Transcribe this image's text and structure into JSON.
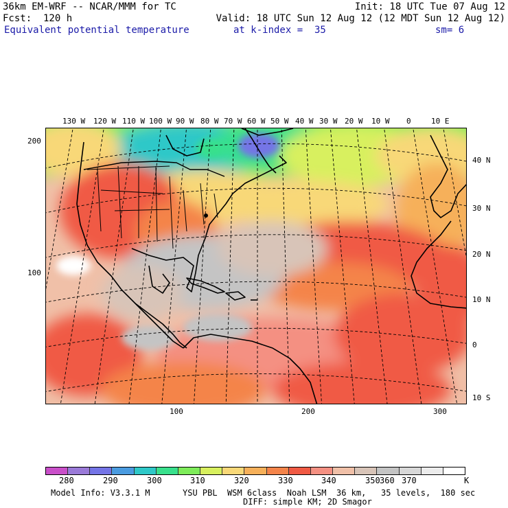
{
  "header": {
    "model": "36km EM-WRF -- NCAR/MMM for TC",
    "init": "Init: 18 UTC Tue 07 Aug 12",
    "forecast": "Fcst:  120 h",
    "valid": "Valid: 18 UTC Sun 12 Aug 12 (12 MDT Sun 12 Aug 12)",
    "field": "Equivalent potential temperature",
    "level": "at k-index =  35",
    "smoothing": "sm= 6"
  },
  "map": {
    "longitude_labels": [
      "130 W",
      "120 W",
      "110 W",
      "100 W",
      "90 W",
      "80 W",
      "70 W",
      "60 W",
      "50 W",
      "40 W",
      "30 W",
      "20 W",
      "10 W",
      "0",
      "10 E"
    ],
    "latitude_labels": [
      "40 N",
      "30 N",
      "20 N",
      "10 N",
      "0",
      "10 S"
    ],
    "grid_y_labels": [
      "200",
      "100"
    ],
    "grid_x_labels": [
      "100",
      "200",
      "300"
    ]
  },
  "colorbar": {
    "labels": [
      "280",
      "290",
      "300",
      "310",
      "320",
      "330",
      "340",
      "350",
      "360",
      "370"
    ],
    "unit": "K",
    "colors": [
      "#c94fc9",
      "#9a7ad8",
      "#7474e6",
      "#4a9be0",
      "#2ec8c8",
      "#38e08c",
      "#7eec5a",
      "#d8f05e",
      "#f8d878",
      "#f6b05a",
      "#f4844a",
      "#f05a44",
      "#f49082",
      "#f0c0a8",
      "#d8c4b8",
      "#c4c4c4",
      "#d8d8d8",
      "#ececec",
      "#ffffff"
    ]
  },
  "footer": {
    "model_info": "Model Info: V3.3.1 M",
    "physics": "YSU PBL  WSM 6class  Noah LSM  36 km,   35 levels,  180 sec",
    "diffusion": "DIFF: simple KM; 2D Smagor"
  }
}
